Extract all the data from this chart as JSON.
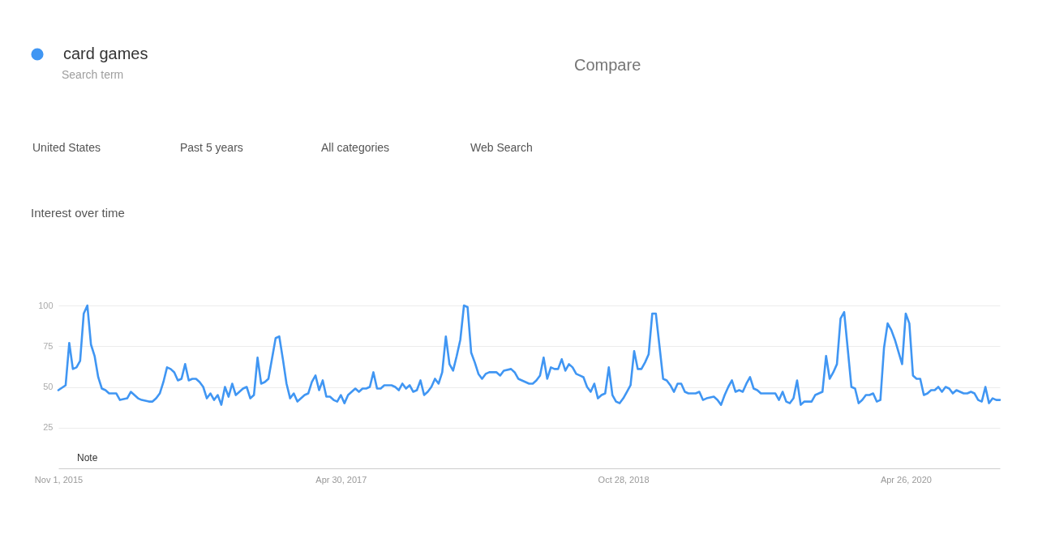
{
  "chart_data": {
    "type": "line",
    "title": "Interest over time",
    "legend": "top left",
    "grid": "y",
    "xlim": [
      "2015-11-01",
      "2020-10-25"
    ],
    "xticks": [
      {
        "value": "2015-11-01",
        "label": "Nov 1, 2015"
      },
      {
        "value": "2017-04-30",
        "label": "Apr 30, 2017"
      },
      {
        "value": "2018-10-28",
        "label": "Oct 28, 2018"
      },
      {
        "value": "2020-04-26",
        "label": "Apr 26, 2020"
      }
    ],
    "ylim": [
      0,
      100
    ],
    "yticks": [
      25,
      50,
      75,
      100
    ],
    "annotations": [
      "Search term",
      "Compare",
      "United States",
      "Past 5 years",
      "All categories",
      "Web Search",
      "Note"
    ],
    "x": [
      "2015-11-01",
      "2015-11-15",
      "2015-11-22",
      "2015-11-29",
      "2015-12-06",
      "2015-12-13",
      "2015-12-20",
      "2015-12-27",
      "2016-01-03",
      "2016-01-10",
      "2016-01-17",
      "2016-01-24",
      "2016-01-31",
      "2016-02-07",
      "2016-02-21",
      "2016-02-28",
      "2016-03-13",
      "2016-03-20",
      "2016-03-27",
      "2016-04-03",
      "2016-04-10",
      "2016-04-24",
      "2016-05-01",
      "2016-05-08",
      "2016-05-15",
      "2016-05-22",
      "2016-05-29",
      "2016-06-05",
      "2016-06-12",
      "2016-06-19",
      "2016-06-26",
      "2016-07-03",
      "2016-07-10",
      "2016-07-17",
      "2016-07-24",
      "2016-07-31",
      "2016-08-07",
      "2016-08-14",
      "2016-08-21",
      "2016-08-28",
      "2016-09-04",
      "2016-09-11",
      "2016-09-18",
      "2016-09-25",
      "2016-10-02",
      "2016-10-09",
      "2016-10-16",
      "2016-10-23",
      "2016-10-30",
      "2016-11-06",
      "2016-11-13",
      "2016-11-20",
      "2016-11-27",
      "2016-12-04",
      "2016-12-11",
      "2016-12-25",
      "2017-01-01",
      "2017-01-08",
      "2017-01-15",
      "2017-01-22",
      "2017-01-29",
      "2017-02-05",
      "2017-02-12",
      "2017-02-19",
      "2017-02-26",
      "2017-03-05",
      "2017-03-12",
      "2017-03-19",
      "2017-03-26",
      "2017-04-02",
      "2017-04-09",
      "2017-04-16",
      "2017-04-23",
      "2017-04-30",
      "2017-05-07",
      "2017-05-14",
      "2017-05-21",
      "2017-05-28",
      "2017-06-04",
      "2017-06-11",
      "2017-06-18",
      "2017-06-25",
      "2017-07-02",
      "2017-07-09",
      "2017-07-16",
      "2017-07-23",
      "2017-08-06",
      "2017-08-13",
      "2017-08-20",
      "2017-08-27",
      "2017-09-03",
      "2017-09-10",
      "2017-09-17",
      "2017-09-24",
      "2017-10-01",
      "2017-10-08",
      "2017-10-15",
      "2017-10-22",
      "2017-10-29",
      "2017-11-05",
      "2017-11-12",
      "2017-11-19",
      "2017-11-26",
      "2017-12-03",
      "2017-12-10",
      "2017-12-17",
      "2017-12-24",
      "2017-12-31",
      "2018-01-07",
      "2018-01-14",
      "2018-01-21",
      "2018-01-28",
      "2018-02-04",
      "2018-02-11",
      "2018-02-25",
      "2018-03-04",
      "2018-03-11",
      "2018-03-25",
      "2018-04-01",
      "2018-04-08",
      "2018-04-22",
      "2018-04-29",
      "2018-05-06",
      "2018-05-13",
      "2018-05-20",
      "2018-05-27",
      "2018-06-03",
      "2018-06-10",
      "2018-06-17",
      "2018-06-24",
      "2018-07-01",
      "2018-07-08",
      "2018-07-15",
      "2018-07-22",
      "2018-07-29",
      "2018-08-05",
      "2018-08-12",
      "2018-08-19",
      "2018-08-26",
      "2018-09-02",
      "2018-09-09",
      "2018-09-16",
      "2018-09-23",
      "2018-09-30",
      "2018-10-07",
      "2018-10-14",
      "2018-10-21",
      "2018-10-28",
      "2018-11-04",
      "2018-11-11",
      "2018-11-18",
      "2018-11-25",
      "2018-12-02",
      "2018-12-09",
      "2018-12-16",
      "2018-12-23",
      "2018-12-30",
      "2019-01-06",
      "2019-01-13",
      "2019-01-20",
      "2019-01-27",
      "2019-02-03",
      "2019-02-10",
      "2019-02-17",
      "2019-02-24",
      "2019-03-03",
      "2019-03-17",
      "2019-03-24",
      "2019-03-31",
      "2019-04-07",
      "2019-04-21",
      "2019-04-28",
      "2019-05-05",
      "2019-05-12",
      "2019-05-19",
      "2019-05-26",
      "2019-06-02",
      "2019-06-09",
      "2019-06-16",
      "2019-06-23",
      "2019-06-30",
      "2019-07-07",
      "2019-07-14",
      "2019-07-21",
      "2019-07-28",
      "2019-08-11",
      "2019-08-18",
      "2019-08-25",
      "2019-09-01",
      "2019-09-08",
      "2019-09-15",
      "2019-09-22",
      "2019-09-29",
      "2019-10-06",
      "2019-10-13",
      "2019-10-27",
      "2019-11-03",
      "2019-11-10",
      "2019-11-17",
      "2019-11-24",
      "2019-12-01",
      "2019-12-08",
      "2019-12-15",
      "2019-12-22",
      "2019-12-29",
      "2020-01-12",
      "2020-01-19",
      "2020-01-26",
      "2020-02-02",
      "2020-02-09",
      "2020-02-16",
      "2020-02-23",
      "2020-03-01",
      "2020-03-08",
      "2020-03-15",
      "2020-03-22",
      "2020-03-29",
      "2020-04-05",
      "2020-04-19",
      "2020-04-26",
      "2020-05-03",
      "2020-05-10",
      "2020-05-17",
      "2020-05-24",
      "2020-05-31",
      "2020-06-07",
      "2020-06-14",
      "2020-06-21",
      "2020-06-28",
      "2020-07-05",
      "2020-07-12",
      "2020-07-19",
      "2020-07-26",
      "2020-08-02",
      "2020-08-09",
      "2020-08-16",
      "2020-08-23",
      "2020-08-30",
      "2020-09-06",
      "2020-09-13",
      "2020-09-20",
      "2020-09-27",
      "2020-10-04",
      "2020-10-11",
      "2020-10-18",
      "2020-10-25"
    ],
    "series": [
      {
        "name": "card games",
        "color": "#4096f3",
        "values": [
          48,
          51,
          77,
          61,
          62,
          66,
          95,
          100,
          76,
          69,
          56,
          49,
          48,
          46,
          46,
          42,
          43,
          47,
          45,
          43,
          42,
          41,
          41,
          43,
          46,
          53,
          62,
          61,
          59,
          54,
          55,
          64,
          54,
          55,
          55,
          53,
          50,
          43,
          46,
          42,
          45,
          39,
          50,
          44,
          52,
          45,
          47,
          49,
          50,
          43,
          45,
          68,
          52,
          53,
          55,
          80,
          81,
          67,
          52,
          43,
          46,
          41,
          43,
          45,
          46,
          53,
          57,
          48,
          54,
          44,
          44,
          42,
          41,
          45,
          40,
          45,
          47,
          49,
          47,
          49,
          49,
          50,
          59,
          49,
          49,
          51,
          51,
          50,
          48,
          52,
          49,
          51,
          47,
          48,
          54,
          45,
          47,
          50,
          55,
          52,
          59,
          81,
          64,
          60,
          69,
          79,
          100,
          99,
          71,
          65,
          58,
          55,
          58,
          59,
          59,
          57,
          60,
          61,
          59,
          55,
          53,
          52,
          52,
          54,
          57,
          68,
          55,
          62,
          61,
          61,
          67,
          60,
          64,
          62,
          58,
          57,
          56,
          50,
          47,
          52,
          43,
          45,
          46,
          62,
          45,
          41,
          40,
          43,
          47,
          51,
          72,
          61,
          61,
          65,
          70,
          95,
          95,
          75,
          55,
          54,
          51,
          47,
          52,
          52,
          47,
          46,
          46,
          47,
          42,
          43,
          44,
          42,
          39,
          45,
          50,
          54,
          47,
          48,
          47,
          52,
          56,
          49,
          48,
          46,
          46,
          46,
          46,
          42,
          47,
          41,
          40,
          43,
          54,
          39,
          41,
          41,
          45,
          46,
          47,
          69,
          55,
          59,
          64,
          92,
          96,
          50,
          49,
          40,
          42,
          45,
          45,
          46,
          41,
          42,
          74,
          89,
          85,
          79,
          64,
          95,
          89,
          57,
          55,
          55,
          45,
          46,
          48,
          48,
          50,
          47,
          50,
          49,
          46,
          48,
          47,
          46,
          46,
          47,
          46,
          42,
          41,
          50,
          40,
          43,
          42,
          42
        ]
      }
    ]
  }
}
